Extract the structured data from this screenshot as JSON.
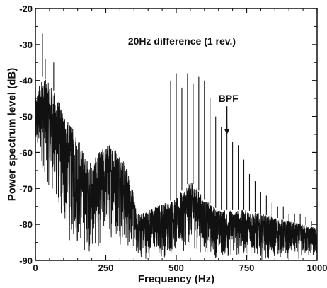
{
  "chart_data": {
    "type": "line",
    "title": "",
    "xlabel": "Frequency (Hz)",
    "ylabel": "Power spectrum level (dB)",
    "xlim": [
      0,
      1000
    ],
    "ylim": [
      -90,
      -20
    ],
    "x_ticks": [
      0,
      250,
      500,
      750,
      1000
    ],
    "y_ticks": [
      -90,
      -80,
      -70,
      -60,
      -50,
      -40,
      -30,
      -20
    ],
    "x_tick_labels": [
      "0",
      "250",
      "500",
      "750",
      "1000"
    ],
    "y_tick_labels": [
      "-90",
      "-80",
      "-70",
      "-60",
      "-50",
      "-40",
      "-30",
      "-20"
    ],
    "grid": false,
    "line_color": "#111111",
    "annotations": [
      {
        "text": "20Hz difference (1 rev.)",
        "x": 520,
        "y": -30
      },
      {
        "text": "BPF",
        "x": 650,
        "y": -46,
        "arrow_to": {
          "x": 680,
          "y": -55
        }
      }
    ],
    "series": [
      {
        "envelope_x": [
          0,
          10,
          25,
          40,
          60,
          80,
          100,
          120,
          150,
          175,
          200,
          225,
          250,
          275,
          300,
          320,
          340,
          360,
          400,
          450,
          500,
          525,
          550,
          575,
          600,
          650,
          700,
          750,
          800,
          850,
          900,
          950,
          1000
        ],
        "envelope_upper": [
          -45,
          -42,
          -39,
          -40,
          -42,
          -45,
          -48,
          -52,
          -55,
          -61,
          -63,
          -60,
          -58,
          -57,
          -60,
          -63,
          -68,
          -77,
          -76,
          -74,
          -73,
          -70,
          -68,
          -70,
          -73,
          -76,
          -76,
          -76,
          -77,
          -78,
          -79,
          -80,
          -81
        ],
        "envelope_lower": [
          -62,
          -64,
          -66,
          -70,
          -72,
          -78,
          -84,
          -86,
          -88,
          -89,
          -89,
          -88,
          -86,
          -84,
          -86,
          -88,
          -89,
          -90,
          -90,
          -90,
          -89,
          -88,
          -87,
          -88,
          -89,
          -90,
          -90,
          -90,
          -90,
          -90,
          -90,
          -90,
          -90
        ],
        "peaks": [
          {
            "x": 25,
            "y": -27
          },
          {
            "x": 35,
            "y": -34
          },
          {
            "x": 65,
            "y": -35
          },
          {
            "x": 480,
            "y": -40
          },
          {
            "x": 500,
            "y": -38
          },
          {
            "x": 520,
            "y": -42
          },
          {
            "x": 540,
            "y": -38
          },
          {
            "x": 560,
            "y": -41
          },
          {
            "x": 580,
            "y": -39
          },
          {
            "x": 600,
            "y": -40
          },
          {
            "x": 620,
            "y": -45
          },
          {
            "x": 640,
            "y": -50
          },
          {
            "x": 660,
            "y": -53
          },
          {
            "x": 680,
            "y": -52
          },
          {
            "x": 700,
            "y": -57
          },
          {
            "x": 720,
            "y": -58
          },
          {
            "x": 740,
            "y": -62
          },
          {
            "x": 760,
            "y": -66
          },
          {
            "x": 780,
            "y": -68
          },
          {
            "x": 800,
            "y": -71
          },
          {
            "x": 820,
            "y": -72
          },
          {
            "x": 840,
            "y": -74
          },
          {
            "x": 860,
            "y": -75
          },
          {
            "x": 880,
            "y": -75
          },
          {
            "x": 900,
            "y": -77
          },
          {
            "x": 920,
            "y": -77
          },
          {
            "x": 940,
            "y": -77
          },
          {
            "x": 960,
            "y": -78
          },
          {
            "x": 980,
            "y": -79
          }
        ]
      }
    ]
  }
}
